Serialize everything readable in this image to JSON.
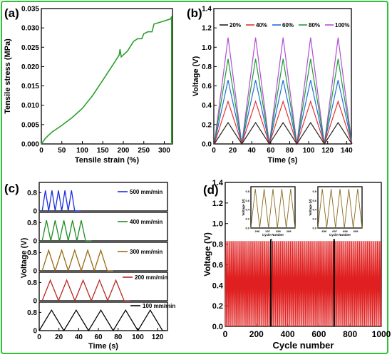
{
  "panels": {
    "a": {
      "label": "(a)"
    },
    "b": {
      "label": "(b)"
    },
    "c": {
      "label": "(c)"
    },
    "d": {
      "label": "(d)"
    }
  },
  "chart_data": [
    {
      "id": "a",
      "type": "line",
      "xlabel": "Tensile strain (%)",
      "ylabel": "Tensile stress (MPa)",
      "xlim": [
        0,
        320
      ],
      "ylim": [
        0,
        0.035
      ],
      "xticks": [
        0,
        50,
        100,
        150,
        200,
        250,
        300
      ],
      "yticks": [
        0.0,
        0.005,
        0.01,
        0.015,
        0.02,
        0.025,
        0.03,
        0.035
      ],
      "ytick_labels": [
        "0.000",
        "0.005",
        "0.010",
        "0.015",
        "0.020",
        "0.025",
        "0.030",
        "0.035"
      ],
      "color": "#2aa02a",
      "x": [
        0,
        10,
        25,
        50,
        75,
        100,
        125,
        150,
        175,
        190,
        192,
        195,
        200,
        210,
        225,
        235,
        245,
        250,
        260,
        270,
        275,
        300,
        315,
        318,
        318
      ],
      "y": [
        0,
        0.0015,
        0.003,
        0.0048,
        0.0068,
        0.0092,
        0.0125,
        0.0165,
        0.0205,
        0.023,
        0.0245,
        0.0225,
        0.023,
        0.024,
        0.0265,
        0.0272,
        0.0272,
        0.0285,
        0.029,
        0.029,
        0.031,
        0.0318,
        0.0323,
        0.0328,
        0
      ]
    },
    {
      "id": "b",
      "type": "line",
      "xlabel": "Time (s)",
      "ylabel": "Voltage (V)",
      "xlim": [
        0,
        145
      ],
      "ylim": [
        0,
        1.4
      ],
      "xticks": [
        0,
        20,
        40,
        60,
        80,
        100,
        120,
        140
      ],
      "yticks": [
        0.0,
        0.2,
        0.4,
        0.6,
        0.8,
        1.0,
        1.2,
        1.4
      ],
      "ytick_labels": [
        "0.0",
        "0.2",
        "0.4",
        "0.6",
        "0.8",
        "1.0",
        "1.2",
        "1.4"
      ],
      "period": 29,
      "first_peak": 15,
      "cycles": 5,
      "series": [
        {
          "name": "20%",
          "color": "#222222",
          "peak": 0.22
        },
        {
          "name": "40%",
          "color": "#e8302c",
          "peak": 0.44
        },
        {
          "name": "60%",
          "color": "#1f6ed8",
          "peak": 0.66
        },
        {
          "name": "80%",
          "color": "#1f9a3a",
          "peak": 0.88
        },
        {
          "name": "100%",
          "color": "#b04fd0",
          "peak": 1.1
        }
      ]
    },
    {
      "id": "c",
      "type": "line",
      "xlabel": "Time (s)",
      "ylabel": "Voltage (V)",
      "xlim": [
        0,
        130
      ],
      "xticks": [
        0,
        20,
        40,
        60,
        80,
        100,
        120
      ],
      "subplot_yticks": [
        0,
        0.8
      ],
      "subplot_ytick_labels": [
        "0",
        "0.8"
      ],
      "series": [
        {
          "name": "500 mm/min",
          "color": "#1b2de0",
          "start": 3,
          "period": 6.6,
          "cycles": 5,
          "peak": 0.9
        },
        {
          "name": "400 mm/min",
          "color": "#1e8c22",
          "start": 3,
          "period": 8.8,
          "cycles": 5,
          "peak": 0.9
        },
        {
          "name": "300 mm/min",
          "color": "#9a6a12",
          "start": 3,
          "period": 13.2,
          "cycles": 5,
          "peak": 0.9
        },
        {
          "name": "200 mm/min",
          "color": "#b8281f",
          "start": 3,
          "period": 16.6,
          "cycles": 5,
          "peak": 0.9
        },
        {
          "name": "100 mm/min",
          "color": "#000000",
          "start": 0,
          "period": 25,
          "cycles": 5,
          "peak": 0.9
        }
      ]
    },
    {
      "id": "d",
      "type": "line",
      "xlabel": "Cycle number",
      "ylabel": "Voltage (V)",
      "xlim": [
        0,
        1000
      ],
      "ylim": [
        0,
        1.4
      ],
      "xticks": [
        0,
        200,
        400,
        600,
        800,
        1000
      ],
      "yticks": [
        0.0,
        0.2,
        0.4,
        0.6,
        0.8,
        1.0,
        1.2,
        1.4
      ],
      "ytick_labels": [
        "0.0",
        "0.2",
        "0.4",
        "0.6",
        "0.8",
        "1.0",
        "1.2",
        "1.4"
      ],
      "color": "#e02020",
      "peak": 0.83,
      "cycles": 140,
      "highlight_ranges": [
        [
          290,
          298
        ],
        [
          693,
          701
        ]
      ],
      "insets": [
        {
          "xlabel": "Cycle Number",
          "ylabel": "Voltage (V)",
          "xticks": [
            296,
            297,
            298,
            299
          ],
          "yticks": [
            0.0,
            0.2,
            0.4,
            0.6,
            0.8
          ],
          "ytick_labels": [
            "0.0",
            "0.2",
            "0.4",
            "0.6",
            "0.8"
          ],
          "cycles": 5,
          "peak": 0.85
        },
        {
          "xlabel": "Cycle Number",
          "ylabel": "Voltage (V)",
          "xticks": [
            696,
            697,
            698,
            699
          ],
          "yticks": [
            0.0,
            0.2,
            0.4,
            0.6,
            0.8
          ],
          "ytick_labels": [
            "0.0",
            "0.2",
            "0.4",
            "0.6",
            "0.8"
          ],
          "cycles": 5,
          "peak": 0.85
        }
      ]
    }
  ]
}
